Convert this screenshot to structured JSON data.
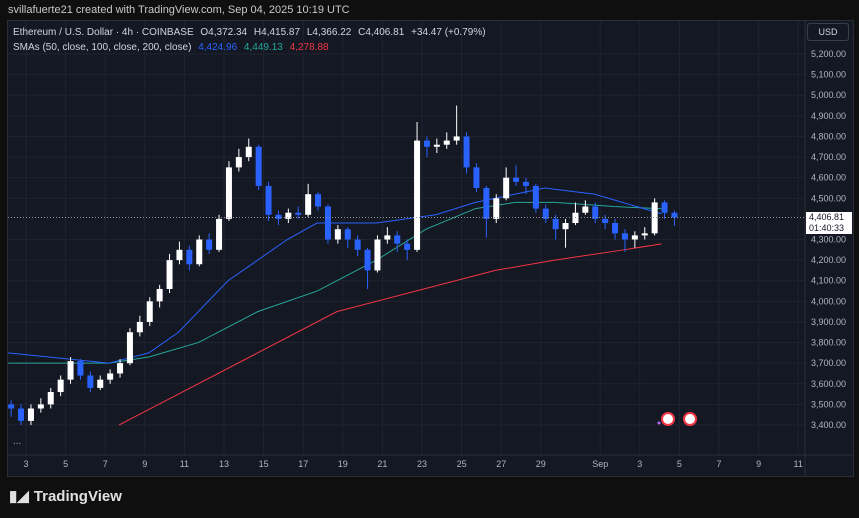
{
  "credit": "svillafuerte21 created with TradingView.com, Sep 04, 2025 10:19 UTC",
  "legend": {
    "symbol": "Ethereum / U.S. Dollar · 4h · COINBASE",
    "open": "O4,372.34",
    "high": "H4,415.87",
    "low": "L4,366.22",
    "close": "C4,406.81",
    "change": "+34.47 (+0.79%)",
    "sma_label": "SMAs (50, close, 100, close, 200, close)",
    "sma50": "4,424.96",
    "sma100": "4,449.13",
    "sma200": "4,278.88"
  },
  "currency": "USD",
  "price_tag": {
    "price": "4,406.81",
    "countdown": "01:40:33"
  },
  "logo": "TradingView",
  "more": "...",
  "colors": {
    "up": "#ffffff",
    "down": "#2962ff",
    "sma50": "#2962ff",
    "sma100": "#26a69a",
    "sma200": "#f23645",
    "background": "#141823"
  },
  "chart_data": {
    "type": "candlestick",
    "interval": "4h (drawn as 12h aggregates)",
    "x_unit": "day of August 2025 (Sep 1 = 32)",
    "start_day": 2,
    "step_days": 0.5,
    "candles_ohlc": [
      [
        3500,
        3520,
        3440,
        3480
      ],
      [
        3480,
        3500,
        3400,
        3420
      ],
      [
        3420,
        3500,
        3400,
        3480
      ],
      [
        3480,
        3530,
        3460,
        3500
      ],
      [
        3500,
        3580,
        3480,
        3560
      ],
      [
        3560,
        3640,
        3540,
        3620
      ],
      [
        3620,
        3730,
        3600,
        3710
      ],
      [
        3710,
        3720,
        3620,
        3640
      ],
      [
        3640,
        3660,
        3560,
        3580
      ],
      [
        3580,
        3640,
        3570,
        3620
      ],
      [
        3620,
        3670,
        3600,
        3650
      ],
      [
        3650,
        3720,
        3630,
        3700
      ],
      [
        3700,
        3870,
        3690,
        3850
      ],
      [
        3850,
        3930,
        3830,
        3900
      ],
      [
        3900,
        4020,
        3880,
        4000
      ],
      [
        4000,
        4080,
        3970,
        4060
      ],
      [
        4060,
        4230,
        4040,
        4200
      ],
      [
        4200,
        4290,
        4180,
        4250
      ],
      [
        4250,
        4270,
        4150,
        4180
      ],
      [
        4180,
        4320,
        4170,
        4300
      ],
      [
        4300,
        4330,
        4230,
        4250
      ],
      [
        4250,
        4420,
        4240,
        4400
      ],
      [
        4400,
        4680,
        4390,
        4650
      ],
      [
        4650,
        4740,
        4630,
        4700
      ],
      [
        4700,
        4790,
        4680,
        4750
      ],
      [
        4750,
        4760,
        4540,
        4560
      ],
      [
        4560,
        4580,
        4390,
        4420
      ],
      [
        4420,
        4440,
        4370,
        4400
      ],
      [
        4400,
        4450,
        4380,
        4430
      ],
      [
        4430,
        4460,
        4400,
        4420
      ],
      [
        4420,
        4570,
        4410,
        4520
      ],
      [
        4520,
        4530,
        4440,
        4460
      ],
      [
        4460,
        4470,
        4280,
        4300
      ],
      [
        4300,
        4370,
        4280,
        4350
      ],
      [
        4350,
        4360,
        4260,
        4300
      ],
      [
        4300,
        4320,
        4220,
        4250
      ],
      [
        4250,
        4260,
        4060,
        4150
      ],
      [
        4150,
        4320,
        4140,
        4300
      ],
      [
        4300,
        4360,
        4280,
        4320
      ],
      [
        4320,
        4340,
        4240,
        4280
      ],
      [
        4280,
        4300,
        4200,
        4250
      ],
      [
        4250,
        4870,
        4240,
        4780
      ],
      [
        4780,
        4800,
        4700,
        4750
      ],
      [
        4750,
        4790,
        4720,
        4760
      ],
      [
        4760,
        4820,
        4740,
        4780
      ],
      [
        4780,
        4950,
        4760,
        4800
      ],
      [
        4800,
        4820,
        4620,
        4650
      ],
      [
        4650,
        4670,
        4530,
        4550
      ],
      [
        4550,
        4560,
        4310,
        4400
      ],
      [
        4400,
        4520,
        4380,
        4500
      ],
      [
        4500,
        4650,
        4490,
        4600
      ],
      [
        4600,
        4660,
        4560,
        4580
      ],
      [
        4580,
        4600,
        4520,
        4560
      ],
      [
        4560,
        4570,
        4430,
        4450
      ],
      [
        4450,
        4470,
        4380,
        4400
      ],
      [
        4400,
        4420,
        4300,
        4350
      ],
      [
        4350,
        4400,
        4260,
        4380
      ],
      [
        4380,
        4480,
        4370,
        4430
      ],
      [
        4430,
        4490,
        4420,
        4460
      ],
      [
        4460,
        4480,
        4380,
        4400
      ],
      [
        4400,
        4420,
        4350,
        4380
      ],
      [
        4380,
        4400,
        4300,
        4330
      ],
      [
        4330,
        4350,
        4240,
        4300
      ],
      [
        4300,
        4340,
        4260,
        4320
      ],
      [
        4320,
        4360,
        4300,
        4330
      ],
      [
        4330,
        4500,
        4320,
        4480
      ],
      [
        4480,
        4490,
        4400,
        4430
      ],
      [
        4430,
        4440,
        4366,
        4406.81
      ]
    ],
    "sma50": [
      [
        2.1,
        3750
      ],
      [
        7.2,
        3700
      ],
      [
        9.2,
        3750
      ],
      [
        10.7,
        3850
      ],
      [
        13.2,
        4100
      ],
      [
        16.2,
        4300
      ],
      [
        17.7,
        4380
      ],
      [
        20.7,
        4380
      ],
      [
        23.7,
        4420
      ],
      [
        25.7,
        4480
      ],
      [
        27.7,
        4520
      ],
      [
        29.2,
        4550
      ],
      [
        31.7,
        4520
      ],
      [
        34.2,
        4450
      ],
      [
        35.1,
        4424.96
      ]
    ],
    "sma100": [
      [
        2.1,
        3700
      ],
      [
        7.2,
        3700
      ],
      [
        9.2,
        3730
      ],
      [
        11.7,
        3800
      ],
      [
        14.7,
        3950
      ],
      [
        17.7,
        4050
      ],
      [
        20.7,
        4200
      ],
      [
        23.2,
        4350
      ],
      [
        25.7,
        4450
      ],
      [
        27.7,
        4480
      ],
      [
        29.7,
        4480
      ],
      [
        32.7,
        4460
      ],
      [
        35.1,
        4449.13
      ]
    ],
    "sma200": [
      [
        7.7,
        3400
      ],
      [
        10.7,
        3550
      ],
      [
        14.7,
        3750
      ],
      [
        18.7,
        3950
      ],
      [
        22.7,
        4050
      ],
      [
        26.7,
        4150
      ],
      [
        29.7,
        4200
      ],
      [
        33.2,
        4250
      ],
      [
        35.1,
        4278.88
      ]
    ],
    "last_price": 4406.81,
    "y_ticks": [
      "5,200.00",
      "5,100.00",
      "5,000.00",
      "4,900.00",
      "4,800.00",
      "4,700.00",
      "4,600.00",
      "4,500.00",
      "4,300.00",
      "4,200.00",
      "4,100.00",
      "4,000.00",
      "3,900.00",
      "3,800.00",
      "3,700.00",
      "3,600.00",
      "3,500.00",
      "3,400.00"
    ],
    "x_ticks": [
      {
        "day": 3,
        "label": "3"
      },
      {
        "day": 5,
        "label": "5"
      },
      {
        "day": 7,
        "label": "7"
      },
      {
        "day": 9,
        "label": "9"
      },
      {
        "day": 11,
        "label": "11"
      },
      {
        "day": 13,
        "label": "13"
      },
      {
        "day": 15,
        "label": "15"
      },
      {
        "day": 17,
        "label": "17"
      },
      {
        "day": 19,
        "label": "19"
      },
      {
        "day": 21,
        "label": "21"
      },
      {
        "day": 23,
        "label": "23"
      },
      {
        "day": 25,
        "label": "25"
      },
      {
        "day": 27,
        "label": "27"
      },
      {
        "day": 29,
        "label": "29"
      },
      {
        "day": 32,
        "label": "Sep"
      },
      {
        "day": 34,
        "label": "3"
      },
      {
        "day": 36,
        "label": "5"
      },
      {
        "day": 38,
        "label": "7"
      },
      {
        "day": 40,
        "label": "9"
      },
      {
        "day": 42,
        "label": "11"
      }
    ],
    "y_range": [
      3400,
      5200
    ],
    "grid": true
  }
}
